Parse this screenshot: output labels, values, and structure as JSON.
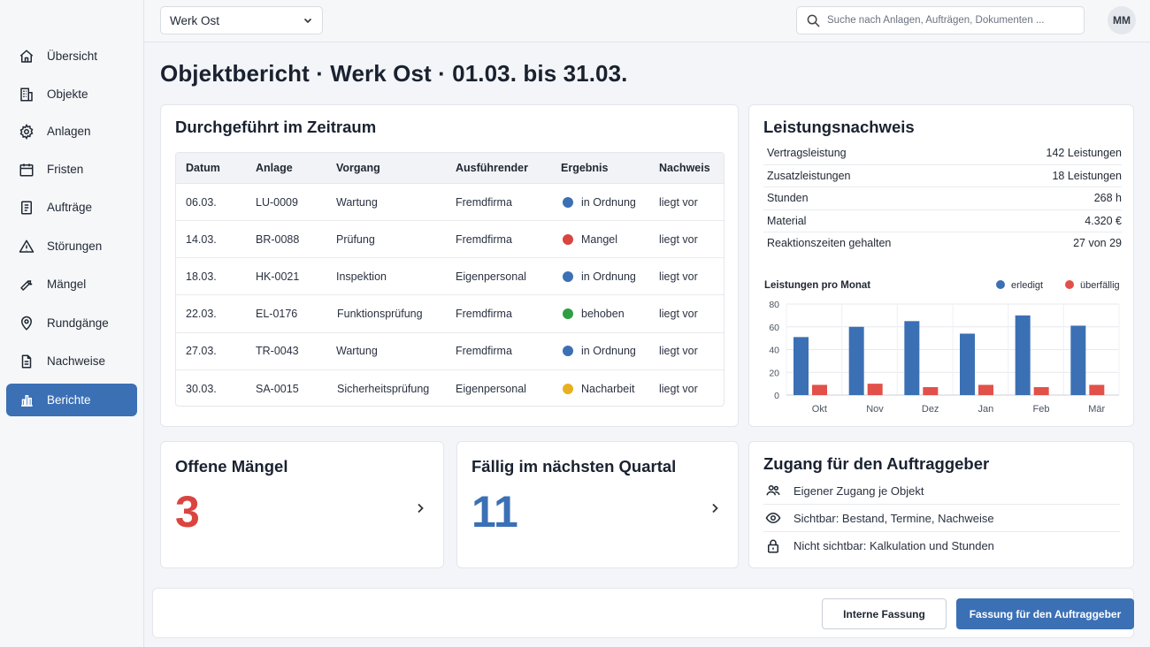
{
  "sidebar": {
    "items": [
      {
        "label": "Übersicht",
        "icon": "home-icon"
      },
      {
        "label": "Objekte",
        "icon": "building-icon"
      },
      {
        "label": "Anlagen",
        "icon": "gear-icon"
      },
      {
        "label": "Fristen",
        "icon": "calendar-icon"
      },
      {
        "label": "Aufträge",
        "icon": "clipboard-icon"
      },
      {
        "label": "Störungen",
        "icon": "warning-icon"
      },
      {
        "label": "Mängel",
        "icon": "wrench-icon"
      },
      {
        "label": "Rundgänge",
        "icon": "location-pin-icon"
      },
      {
        "label": "Nachweise",
        "icon": "document-icon"
      },
      {
        "label": "Berichte",
        "icon": "bar-chart-icon",
        "active": true
      }
    ]
  },
  "topbar": {
    "site_select": "Werk Ost",
    "search_placeholder": "Suche nach Anlagen, Aufträgen, Dokumenten ...",
    "avatar_initials": "MM"
  },
  "page": {
    "title": "Objektbericht · Werk Ost · 01.03. bis 31.03."
  },
  "performed": {
    "title": "Durchgeführt im Zeitraum",
    "columns": [
      "Datum",
      "Anlage",
      "Vorgang",
      "Ausführender",
      "Ergebnis",
      "Nachweis"
    ],
    "rows": [
      {
        "date": "06.03.",
        "asset": "LU-0009",
        "process": "Wartung",
        "executor": "Fremdfirma",
        "result": "in Ordnung",
        "result_color": "#3b70b5",
        "proof": "liegt vor"
      },
      {
        "date": "14.03.",
        "asset": "BR-0088",
        "process": "Prüfung",
        "executor": "Fremdfirma",
        "result": "Mangel",
        "result_color": "#d9453f",
        "proof": "liegt vor"
      },
      {
        "date": "18.03.",
        "asset": "HK-0021",
        "process": "Inspektion",
        "executor": "Eigenpersonal",
        "result": "in Ordnung",
        "result_color": "#3b70b5",
        "proof": "liegt vor"
      },
      {
        "date": "22.03.",
        "asset": "EL-0176",
        "process": "Funktionsprüfung",
        "executor": "Fremdfirma",
        "result": "behoben",
        "result_color": "#2f9e44",
        "proof": "liegt vor"
      },
      {
        "date": "27.03.",
        "asset": "TR-0043",
        "process": "Wartung",
        "executor": "Fremdfirma",
        "result": "in Ordnung",
        "result_color": "#3b70b5",
        "proof": "liegt vor"
      },
      {
        "date": "30.03.",
        "asset": "SA-0015",
        "process": "Sicherheitsprüfung",
        "executor": "Eigenpersonal",
        "result": "Nacharbeit",
        "result_color": "#e8b020",
        "proof": "liegt vor"
      }
    ]
  },
  "performance": {
    "title": "Leistungsnachweis",
    "items": [
      {
        "label": "Vertragsleistung",
        "value": "142 Leistungen"
      },
      {
        "label": "Zusatzleistungen",
        "value": "18 Leistungen"
      },
      {
        "label": "Stunden",
        "value": "268 h"
      },
      {
        "label": "Material",
        "value": "4.320 €"
      },
      {
        "label": "Reaktionszeiten gehalten",
        "value": "27 von 29"
      }
    ]
  },
  "chart_data": {
    "type": "bar",
    "title": "Leistungen pro Monat",
    "categories": [
      "Okt",
      "Nov",
      "Dez",
      "Jan",
      "Feb",
      "Mär"
    ],
    "series": [
      {
        "name": "erledigt",
        "color": "#3b70b5",
        "values": [
          51,
          60,
          65,
          54,
          70,
          61
        ]
      },
      {
        "name": "überfällig",
        "color": "#e2504a",
        "values": [
          9,
          10,
          7,
          9,
          7,
          9
        ]
      }
    ],
    "ylim": [
      0,
      80
    ],
    "yticks": [
      "0",
      "20",
      "40",
      "60",
      "80"
    ],
    "grid": true,
    "legend": "top-right"
  },
  "open_defects": {
    "title": "Offene Mängel",
    "value": "3",
    "color": "#d9453f"
  },
  "due_next_quarter": {
    "title": "Fällig im nächsten Quartal",
    "value": "11",
    "color": "#3b70b5"
  },
  "client_access": {
    "title": "Zugang für den Auftraggeber",
    "items": [
      {
        "label": "Eigener Zugang je Objekt",
        "icon": "users-icon"
      },
      {
        "label": "Sichtbar: Bestand, Termine, Nachweise",
        "icon": "eye-icon"
      },
      {
        "label": "Nicht sichtbar: Kalkulation und Stunden",
        "icon": "lock-icon"
      }
    ]
  },
  "footer": {
    "internal_label": "Interne Fassung",
    "client_label": "Fassung für den Auftraggeber"
  }
}
